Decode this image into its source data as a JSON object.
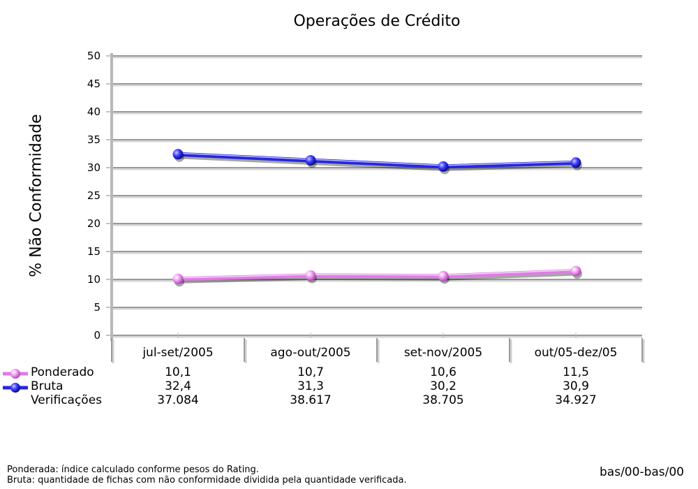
{
  "chart_data": {
    "type": "line",
    "title": "Operações de Crédito",
    "xlabel": "",
    "ylabel": "% Não Conformidade",
    "categories": [
      "jul-set/2005",
      "ago-out/2005",
      "set-nov/2005",
      "out/05-dez/05"
    ],
    "ylim": [
      0,
      50
    ],
    "yticks": [
      0,
      5,
      10,
      15,
      20,
      25,
      30,
      35,
      40,
      45,
      50
    ],
    "grid": true,
    "legend_placement": "bottom-left, in data table",
    "series": [
      {
        "name": "Ponderado",
        "values": [
          10.1,
          10.7,
          10.6,
          11.5
        ],
        "labels": [
          "10,1",
          "10,7",
          "10,6",
          "11,5"
        ],
        "color": "#e07be6"
      },
      {
        "name": "Bruta",
        "values": [
          32.4,
          31.3,
          30.2,
          30.9
        ],
        "labels": [
          "32,4",
          "31,3",
          "30,2",
          "30,9"
        ],
        "color": "#2626e0"
      }
    ],
    "table_rows": [
      {
        "name": "Verificações",
        "values": [
          "37.084",
          "38.617",
          "38.705",
          "34.927"
        ]
      }
    ]
  },
  "footnotes": [
    "Ponderada: índice calculado conforme pesos do Rating.",
    "Bruta: quantidade de fichas com não conformidade dividida pela quantidade verificada."
  ],
  "footer_code": "bas/00-bas/00"
}
